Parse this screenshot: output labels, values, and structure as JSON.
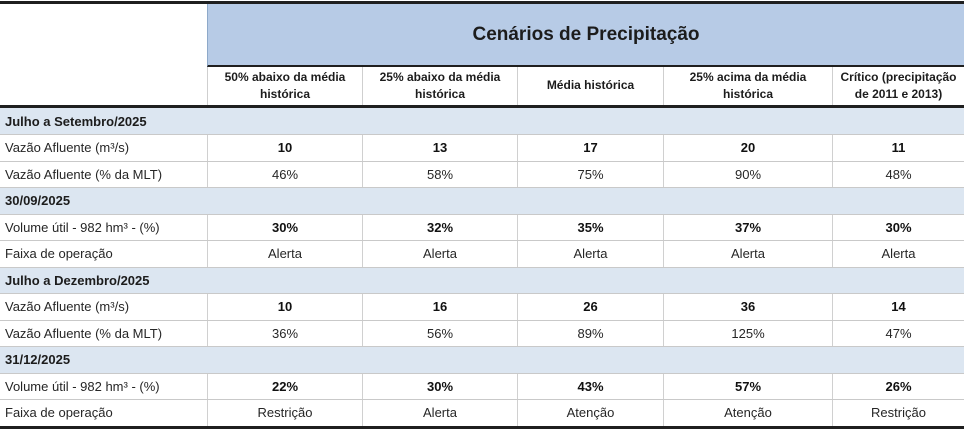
{
  "table": {
    "title": "Cenários de Precipitação",
    "columns": [
      "50% abaixo da média histórica",
      "25% abaixo da média histórica",
      "Média histórica",
      "25% acima da média histórica",
      "Crítico (precipitação de 2011 e 2013)"
    ],
    "rows": [
      {
        "type": "section",
        "label": "Julho a Setembro/2025"
      },
      {
        "type": "data",
        "bold": true,
        "label": "Vazão Afluente (m³/s)",
        "values": [
          "10",
          "13",
          "17",
          "20",
          "11"
        ]
      },
      {
        "type": "data",
        "bold": false,
        "label": "Vazão Afluente (% da MLT)",
        "values": [
          "46%",
          "58%",
          "75%",
          "90%",
          "48%"
        ]
      },
      {
        "type": "section",
        "label": "30/09/2025"
      },
      {
        "type": "data",
        "bold": true,
        "label": "Volume útil - 982 hm³ - (%)",
        "values": [
          "30%",
          "32%",
          "35%",
          "37%",
          "30%"
        ]
      },
      {
        "type": "data",
        "bold": false,
        "label": "Faixa de operação",
        "values": [
          "Alerta",
          "Alerta",
          "Alerta",
          "Alerta",
          "Alerta"
        ]
      },
      {
        "type": "section",
        "label": "Julho a Dezembro/2025"
      },
      {
        "type": "data",
        "bold": true,
        "label": "Vazão Afluente (m³/s)",
        "values": [
          "10",
          "16",
          "26",
          "36",
          "14"
        ]
      },
      {
        "type": "data",
        "bold": false,
        "label": "Vazão Afluente (% da MLT)",
        "values": [
          "36%",
          "56%",
          "89%",
          "125%",
          "47%"
        ]
      },
      {
        "type": "section",
        "label": "31/12/2025"
      },
      {
        "type": "data",
        "bold": true,
        "label": "Volume útil - 982 hm³ - (%)",
        "values": [
          "22%",
          "30%",
          "43%",
          "57%",
          "26%"
        ]
      },
      {
        "type": "data",
        "bold": false,
        "label": "Faixa de operação",
        "values": [
          "Restrição",
          "Alerta",
          "Atenção",
          "Atenção",
          "Restrição"
        ]
      }
    ],
    "colors": {
      "title_band": "#B7CBE6",
      "section_band": "#DCE6F1",
      "border_dark": "#1f1f1f",
      "gridline": "#c9c9c9"
    }
  }
}
